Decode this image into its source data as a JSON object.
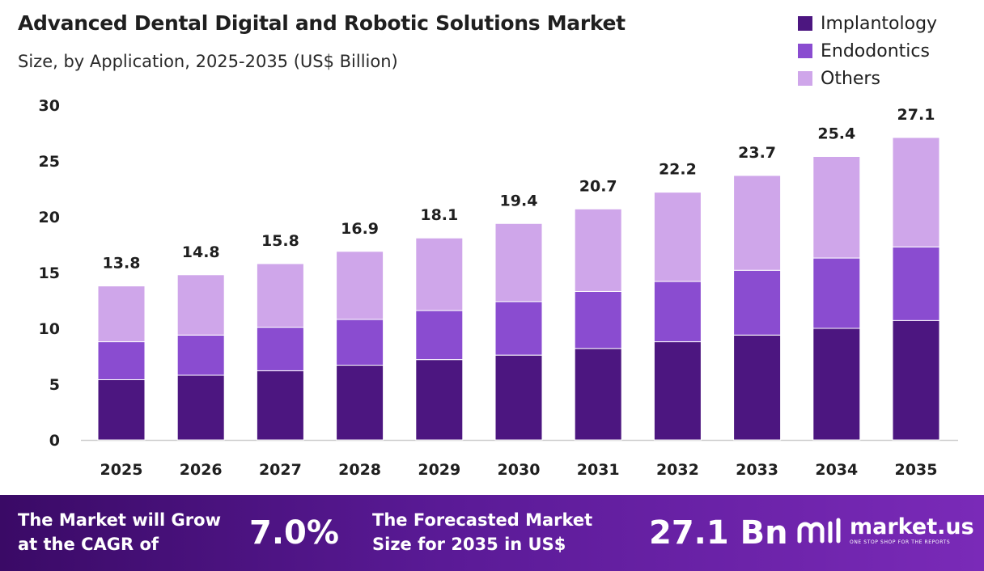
{
  "chart_data": {
    "type": "bar",
    "stacked": true,
    "title": "Advanced Dental Digital and Robotic Solutions Market",
    "subtitle": "Size, by Application, 2025-2035 (US$ Billion)",
    "categories": [
      "2025",
      "2026",
      "2027",
      "2028",
      "2029",
      "2030",
      "2031",
      "2032",
      "2033",
      "2034",
      "2035"
    ],
    "series": [
      {
        "name": "Implantology",
        "color": "#4c1680",
        "values": [
          5.4,
          5.8,
          6.2,
          6.7,
          7.2,
          7.6,
          8.2,
          8.8,
          9.4,
          10.0,
          10.7
        ]
      },
      {
        "name": "Endodontics",
        "color": "#8a4cd0",
        "values": [
          3.4,
          3.6,
          3.9,
          4.1,
          4.4,
          4.8,
          5.1,
          5.4,
          5.8,
          6.3,
          6.6
        ]
      },
      {
        "name": "Others",
        "color": "#cfa6ea",
        "values": [
          5.0,
          5.4,
          5.7,
          6.1,
          6.5,
          7.0,
          7.4,
          8.0,
          8.5,
          9.1,
          9.8
        ]
      }
    ],
    "totals": [
      "13.8",
      "14.8",
      "15.8",
      "16.9",
      "18.1",
      "19.4",
      "20.7",
      "22.2",
      "23.7",
      "25.4",
      "27.1"
    ],
    "ylim": [
      0,
      30
    ],
    "yticks": [
      0,
      5,
      10,
      15,
      20,
      25,
      30
    ],
    "grid": false,
    "legend_position": "top-right"
  },
  "footer": {
    "cagr_line1": "The Market will Grow",
    "cagr_line2": "at the CAGR of",
    "cagr_value": "7.0%",
    "forecast_line1": "The Forecasted Market",
    "forecast_line2": "Size for 2035 in US$",
    "forecast_value": "27.1 Bn",
    "logo_name": "market.us",
    "logo_tagline": "ONE STOP SHOP FOR THE REPORTS"
  }
}
